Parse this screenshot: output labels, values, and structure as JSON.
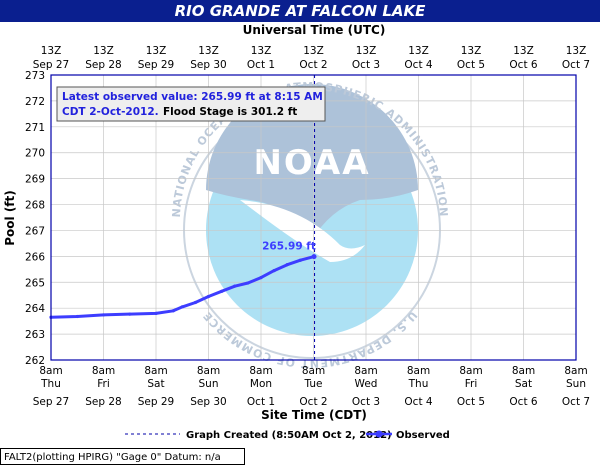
{
  "chart_data": {
    "type": "line",
    "title": "RIO GRANDE AT FALCON LAKE",
    "top_axis_title": "Universal Time (UTC)",
    "xlabel": "Site Time (CDT)",
    "ylabel": "Pool (ft)",
    "ylim": [
      262,
      273
    ],
    "y_ticks": [
      "262",
      "263",
      "264",
      "265",
      "266",
      "267",
      "268",
      "269",
      "270",
      "271",
      "272",
      "273"
    ],
    "x_days": 10,
    "top_ticks": [
      [
        "13Z",
        "Sep 27"
      ],
      [
        "13Z",
        "Sep 28"
      ],
      [
        "13Z",
        "Sep 29"
      ],
      [
        "13Z",
        "Sep 30"
      ],
      [
        "13Z",
        "Oct 1"
      ],
      [
        "13Z",
        "Oct 2"
      ],
      [
        "13Z",
        "Oct 3"
      ],
      [
        "13Z",
        "Oct 4"
      ],
      [
        "13Z",
        "Oct 5"
      ],
      [
        "13Z",
        "Oct 6"
      ],
      [
        "13Z",
        "Oct 7"
      ]
    ],
    "bottom_ticks": [
      [
        "8am",
        "Thu",
        "Sep 27"
      ],
      [
        "8am",
        "Fri",
        "Sep 28"
      ],
      [
        "8am",
        "Sat",
        "Sep 29"
      ],
      [
        "8am",
        "Sun",
        "Sep 30"
      ],
      [
        "8am",
        "Mon",
        "Oct 1"
      ],
      [
        "8am",
        "Tue",
        "Oct 2"
      ],
      [
        "8am",
        "Wed",
        "Oct 3"
      ],
      [
        "8am",
        "Thu",
        "Oct 4"
      ],
      [
        "8am",
        "Fri",
        "Oct 5"
      ],
      [
        "8am",
        "Sat",
        "Oct 6"
      ],
      [
        "8am",
        "Sun",
        "Oct 7"
      ]
    ],
    "series": [
      {
        "name": "Observed",
        "color": "#3d3dff",
        "points": [
          [
            "Sep 27 8am",
            263.65
          ],
          [
            "Sep 27 8pm",
            263.68
          ],
          [
            "Sep 28 8am",
            263.74
          ],
          [
            "Sep 28 8pm",
            263.77
          ],
          [
            "Sep 29 8am",
            263.8
          ],
          [
            "Sep 29 4pm",
            263.9
          ],
          [
            "Sep 29 8pm",
            264.05
          ],
          [
            "Sep 30 2am",
            264.22
          ],
          [
            "Sep 30 8am",
            264.45
          ],
          [
            "Sep 30 2pm",
            264.65
          ],
          [
            "Sep 30 8pm",
            264.85
          ],
          [
            "Oct 1 2am",
            264.97
          ],
          [
            "Oct 1 8am",
            265.18
          ],
          [
            "Oct 1 2pm",
            265.45
          ],
          [
            "Oct 1 8pm",
            265.68
          ],
          [
            "Oct 2 2am",
            265.85
          ],
          [
            "Oct 2 8am",
            265.99
          ]
        ],
        "x_days_from_first_tick": [
          0,
          0.5,
          1,
          1.5,
          2,
          2.33,
          2.5,
          2.75,
          3,
          3.25,
          3.5,
          3.75,
          4,
          4.25,
          4.5,
          4.75,
          5.01
        ]
      }
    ],
    "latest_value_label": "265.99 ft",
    "graph_created_x_days": 5.02,
    "callout": {
      "line1": "Latest observed value: 265.99 ft at 8:15 AM",
      "line2_a": "CDT 2-Oct-2012.",
      "line2_b": "Flood Stage is 301.2 ft"
    },
    "legend": {
      "graph_created": "Graph Created (8:50AM Oct 2, 2012)",
      "observed": "Observed"
    },
    "footer": "FALT2(plotting HPIRG) \"Gage 0\" Datum: n/a",
    "colors": {
      "title_bar": "#0a1f8f",
      "plot_border": "#0000aa",
      "observed": "#3d3dff",
      "callout_blue": "#2222dd",
      "grid": "#c8c8c8"
    },
    "watermark": {
      "logo_text": "NOAA",
      "ring_text": "NATIONAL OCEANIC AND ATMOSPHERIC ADMINISTRATION · U.S. DEPARTMENT OF COMMERCE"
    }
  }
}
